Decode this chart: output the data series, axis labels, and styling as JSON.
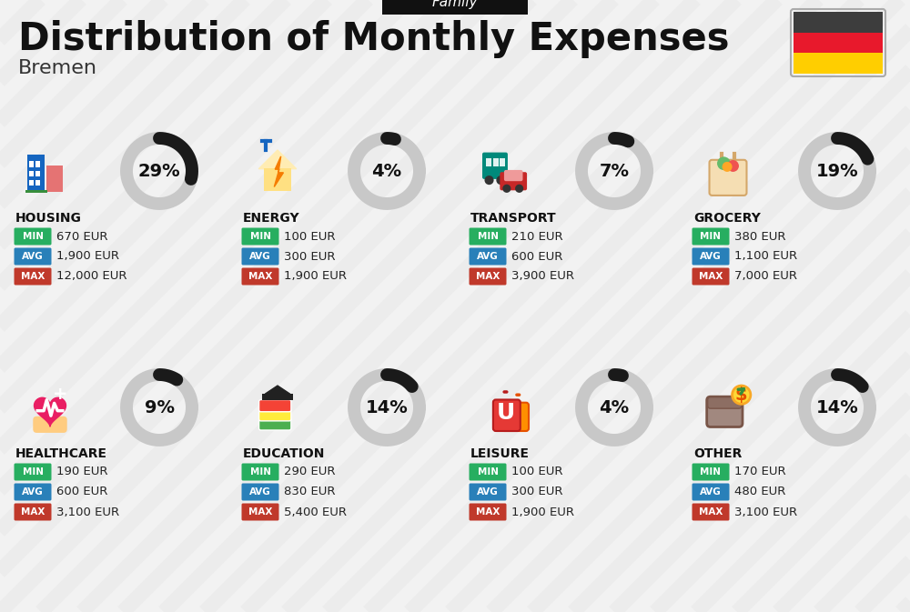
{
  "title": "Distribution of Monthly Expenses",
  "subtitle": "Family",
  "city": "Bremen",
  "bg_color": "#f2f2f2",
  "categories": [
    {
      "name": "HOUSING",
      "pct": 29,
      "min_val": "670 EUR",
      "avg_val": "1,900 EUR",
      "max_val": "12,000 EUR",
      "row": 0,
      "col": 0
    },
    {
      "name": "ENERGY",
      "pct": 4,
      "min_val": "100 EUR",
      "avg_val": "300 EUR",
      "max_val": "1,900 EUR",
      "row": 0,
      "col": 1
    },
    {
      "name": "TRANSPORT",
      "pct": 7,
      "min_val": "210 EUR",
      "avg_val": "600 EUR",
      "max_val": "3,900 EUR",
      "row": 0,
      "col": 2
    },
    {
      "name": "GROCERY",
      "pct": 19,
      "min_val": "380 EUR",
      "avg_val": "1,100 EUR",
      "max_val": "7,000 EUR",
      "row": 0,
      "col": 3
    },
    {
      "name": "HEALTHCARE",
      "pct": 9,
      "min_val": "190 EUR",
      "avg_val": "600 EUR",
      "max_val": "3,100 EUR",
      "row": 1,
      "col": 0
    },
    {
      "name": "EDUCATION",
      "pct": 14,
      "min_val": "290 EUR",
      "avg_val": "830 EUR",
      "max_val": "5,400 EUR",
      "row": 1,
      "col": 1
    },
    {
      "name": "LEISURE",
      "pct": 4,
      "min_val": "100 EUR",
      "avg_val": "300 EUR",
      "max_val": "1,900 EUR",
      "row": 1,
      "col": 2
    },
    {
      "name": "OTHER",
      "pct": 14,
      "min_val": "170 EUR",
      "avg_val": "480 EUR",
      "max_val": "3,100 EUR",
      "row": 1,
      "col": 3
    }
  ],
  "min_color": "#27ae60",
  "avg_color": "#2980b9",
  "max_color": "#c0392b",
  "arc_color": "#1a1a1a",
  "arc_bg_color": "#c8c8c8",
  "stripe_color": "#e8e8e8",
  "flag_black": "#3d3d3d",
  "flag_red": "#e8192c",
  "flag_gold": "#ffce00",
  "family_badge_color": "#111111",
  "title_color": "#111111",
  "city_color": "#333333",
  "cat_name_color": "#111111",
  "val_color": "#222222"
}
